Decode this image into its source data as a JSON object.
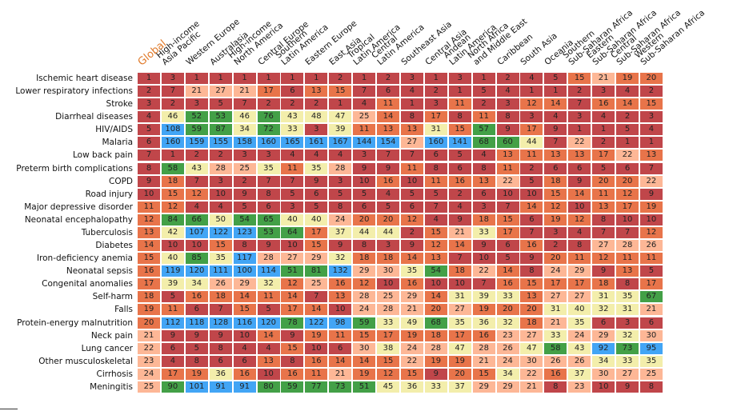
{
  "chart_data": {
    "type": "heatmap",
    "title": "",
    "columns": [
      "Global",
      "High-income\nAsia Pacific",
      "Western Europe",
      "Australasia",
      "High-income\nNorth America",
      "Central Europe",
      "Southern\nLatin America",
      "Eastern Europe",
      "East Asia",
      "Tropical\nLatin America",
      "Central\nLatin America",
      "Southeast Asia",
      "Central Asia",
      "Andean\nLatin America",
      "North Africa\nand Middle East",
      "Caribbean",
      "South Asia",
      "Oceania",
      "Southern\nSub-Saharan Africa",
      "Eastern\nSub-Saharan Africa",
      "Central\nSub-Saharan Africa",
      "Western\nSub-Saharan Africa"
    ],
    "rows": [
      "Ischemic heart disease",
      "Lower respiratory infections",
      "Stroke",
      "Diarrheal diseases",
      "HIV/AIDS",
      "Malaria",
      "Low back pain",
      "Preterm birth complications",
      "COPD",
      "Road injury",
      "Major depressive disorder",
      "Neonatal encephalopathy",
      "Tuberculosis",
      "Diabetes",
      "Iron-deficiency anemia",
      "Neonatal sepsis",
      "Congenital anomalies",
      "Self-harm",
      "Falls",
      "Protein-energy malnutrition",
      "Neck pain",
      "Lung cancer",
      "Other musculoskeletal",
      "Cirrhosis",
      "Meningitis"
    ],
    "values": [
      [
        1,
        3,
        1,
        1,
        1,
        1,
        1,
        1,
        2,
        1,
        2,
        3,
        1,
        3,
        1,
        2,
        4,
        5,
        15,
        21,
        19,
        20
      ],
      [
        2,
        7,
        21,
        27,
        21,
        17,
        6,
        13,
        15,
        7,
        6,
        4,
        2,
        1,
        5,
        4,
        1,
        1,
        2,
        3,
        4,
        2
      ],
      [
        3,
        2,
        3,
        5,
        7,
        2,
        2,
        2,
        1,
        4,
        11,
        1,
        3,
        11,
        2,
        3,
        12,
        14,
        7,
        16,
        14,
        15
      ],
      [
        4,
        46,
        52,
        53,
        46,
        76,
        43,
        48,
        47,
        25,
        14,
        8,
        17,
        8,
        11,
        8,
        3,
        4,
        3,
        4,
        2,
        3
      ],
      [
        5,
        108,
        59,
        87,
        34,
        72,
        33,
        3,
        39,
        11,
        13,
        13,
        31,
        15,
        57,
        9,
        17,
        9,
        1,
        1,
        5,
        4
      ],
      [
        6,
        160,
        159,
        155,
        158,
        160,
        165,
        161,
        167,
        144,
        154,
        27,
        160,
        141,
        68,
        60,
        44,
        7,
        22,
        2,
        1,
        1
      ],
      [
        7,
        1,
        2,
        2,
        3,
        3,
        4,
        4,
        4,
        3,
        7,
        7,
        6,
        5,
        4,
        13,
        11,
        13,
        13,
        17,
        22,
        13
      ],
      [
        8,
        58,
        43,
        28,
        25,
        35,
        11,
        35,
        28,
        9,
        9,
        11,
        8,
        6,
        8,
        11,
        2,
        6,
        6,
        5,
        6,
        7
      ],
      [
        9,
        18,
        7,
        3,
        2,
        7,
        7,
        9,
        3,
        10,
        16,
        10,
        11,
        16,
        13,
        22,
        5,
        18,
        9,
        20,
        20,
        22
      ],
      [
        10,
        15,
        12,
        10,
        9,
        8,
        5,
        6,
        5,
        5,
        4,
        5,
        5,
        2,
        6,
        10,
        10,
        15,
        14,
        11,
        12,
        9
      ],
      [
        11,
        12,
        4,
        4,
        5,
        6,
        3,
        5,
        8,
        6,
        5,
        6,
        7,
        4,
        3,
        7,
        14,
        12,
        10,
        13,
        17,
        19
      ],
      [
        12,
        84,
        66,
        50,
        54,
        65,
        40,
        40,
        24,
        20,
        20,
        12,
        4,
        9,
        18,
        15,
        6,
        19,
        12,
        8,
        10,
        10
      ],
      [
        13,
        42,
        107,
        122,
        123,
        53,
        64,
        17,
        37,
        44,
        44,
        2,
        15,
        21,
        33,
        17,
        7,
        3,
        4,
        7,
        7,
        12
      ],
      [
        14,
        10,
        10,
        15,
        8,
        9,
        10,
        15,
        9,
        8,
        3,
        9,
        12,
        14,
        9,
        6,
        16,
        2,
        8,
        27,
        28,
        26
      ],
      [
        15,
        40,
        85,
        35,
        117,
        28,
        27,
        29,
        32,
        18,
        18,
        14,
        13,
        7,
        10,
        5,
        9,
        20,
        11,
        12,
        11,
        11
      ],
      [
        16,
        119,
        120,
        111,
        100,
        114,
        51,
        81,
        132,
        29,
        30,
        35,
        54,
        18,
        22,
        14,
        8,
        24,
        29,
        9,
        13,
        5
      ],
      [
        17,
        39,
        34,
        26,
        29,
        32,
        12,
        25,
        16,
        12,
        10,
        16,
        10,
        10,
        7,
        16,
        15,
        17,
        17,
        18,
        8,
        17
      ],
      [
        18,
        5,
        16,
        18,
        14,
        11,
        14,
        7,
        13,
        28,
        25,
        29,
        14,
        31,
        39,
        33,
        13,
        27,
        27,
        31,
        35,
        67
      ],
      [
        19,
        11,
        6,
        7,
        15,
        5,
        17,
        14,
        10,
        24,
        28,
        21,
        20,
        27,
        19,
        20,
        20,
        31,
        40,
        32,
        31,
        21
      ],
      [
        20,
        112,
        118,
        128,
        116,
        120,
        78,
        122,
        98,
        59,
        33,
        49,
        68,
        35,
        36,
        32,
        18,
        21,
        35,
        6,
        3,
        6
      ],
      [
        21,
        9,
        9,
        9,
        10,
        14,
        9,
        19,
        11,
        15,
        17,
        19,
        18,
        17,
        16,
        23,
        27,
        33,
        24,
        29,
        32,
        30
      ],
      [
        22,
        6,
        5,
        8,
        4,
        4,
        15,
        10,
        6,
        30,
        38,
        24,
        28,
        47,
        28,
        26,
        47,
        58,
        43,
        92,
        73,
        95
      ],
      [
        23,
        4,
        8,
        6,
        6,
        13,
        8,
        16,
        14,
        14,
        15,
        22,
        19,
        19,
        21,
        24,
        30,
        26,
        26,
        34,
        33,
        35
      ],
      [
        24,
        17,
        19,
        36,
        16,
        10,
        16,
        11,
        21,
        19,
        12,
        15,
        9,
        20,
        15,
        34,
        22,
        16,
        37,
        30,
        27,
        25
      ],
      [
        25,
        90,
        101,
        91,
        91,
        80,
        59,
        77,
        73,
        51,
        45,
        36,
        33,
        37,
        29,
        29,
        21,
        8,
        23,
        10,
        9,
        8
      ]
    ],
    "color_scale": [
      {
        "max": 10,
        "color": "#c0464a"
      },
      {
        "max": 20,
        "color": "#e8744a"
      },
      {
        "max": 30,
        "color": "#fdb796"
      },
      {
        "max": 50,
        "color": "#f3eeab"
      },
      {
        "max": 90,
        "color": "#43a047"
      },
      {
        "max": 9999,
        "color": "#42a5f5"
      }
    ],
    "highlight_column_color": "#e07a2a",
    "grid": false,
    "legend": "none"
  }
}
